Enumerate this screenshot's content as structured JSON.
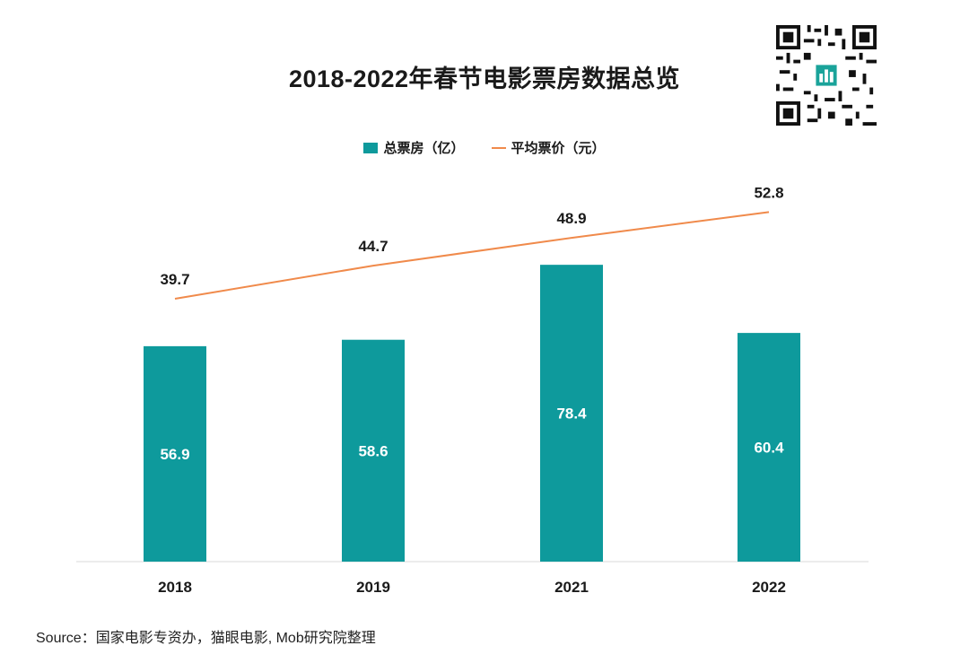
{
  "header": {
    "title": "2018-2022年春节电影票房数据总览"
  },
  "colors": {
    "bar": "#0e9a9c",
    "line": "#f08a4b",
    "axis": "#d9d9d9"
  },
  "legend": {
    "bar_label": "总票房（亿）",
    "line_label": "平均票价（元）"
  },
  "chart_data": {
    "type": "bar",
    "categories": [
      "2018",
      "2019",
      "2021",
      "2022"
    ],
    "series": [
      {
        "name": "总票房（亿）",
        "type": "bar",
        "values": [
          56.9,
          58.6,
          78.4,
          60.4
        ]
      },
      {
        "name": "平均票价（元）",
        "type": "line",
        "values": [
          39.7,
          44.7,
          48.9,
          52.8
        ]
      }
    ],
    "title": "2018-2022年春节电影票房数据总览",
    "legend_position": "top-center",
    "grid": false
  },
  "footer": {
    "source": "Source：国家电影专资办，猫眼电影, Mob研究院整理"
  }
}
